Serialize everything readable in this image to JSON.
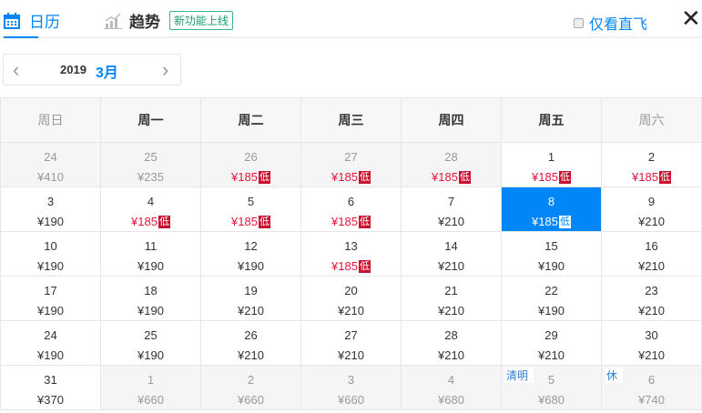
{
  "header": {
    "tab_calendar": "日历",
    "tab_trend": "趋势",
    "new_badge": "新功能上线",
    "direct_only": "仅看直飞",
    "close": "✕"
  },
  "month_selector": {
    "year": "2019",
    "month": "3月",
    "prev": "‹",
    "next": "›"
  },
  "weekdays": [
    "周日",
    "周一",
    "周二",
    "周三",
    "周四",
    "周五",
    "周六"
  ],
  "low_label": "低",
  "colors": {
    "accent": "#0086f6",
    "low_price": "#e2163a",
    "low_badge": "#c8102e"
  },
  "weeks": [
    [
      {
        "day": "24",
        "price": "¥410",
        "other": true
      },
      {
        "day": "25",
        "price": "¥235",
        "other": true
      },
      {
        "day": "26",
        "price": "¥185",
        "other": true,
        "low": true
      },
      {
        "day": "27",
        "price": "¥185",
        "other": true,
        "low": true
      },
      {
        "day": "28",
        "price": "¥185",
        "other": true,
        "low": true
      },
      {
        "day": "1",
        "price": "¥185",
        "low": true
      },
      {
        "day": "2",
        "price": "¥185",
        "low": true
      }
    ],
    [
      {
        "day": "3",
        "price": "¥190"
      },
      {
        "day": "4",
        "price": "¥185",
        "low": true
      },
      {
        "day": "5",
        "price": "¥185",
        "low": true
      },
      {
        "day": "6",
        "price": "¥185",
        "low": true
      },
      {
        "day": "7",
        "price": "¥210"
      },
      {
        "day": "8",
        "price": "¥185",
        "low": true,
        "selected": true
      },
      {
        "day": "9",
        "price": "¥210"
      }
    ],
    [
      {
        "day": "10",
        "price": "¥190"
      },
      {
        "day": "11",
        "price": "¥190"
      },
      {
        "day": "12",
        "price": "¥190"
      },
      {
        "day": "13",
        "price": "¥185",
        "low": true
      },
      {
        "day": "14",
        "price": "¥210"
      },
      {
        "day": "15",
        "price": "¥190"
      },
      {
        "day": "16",
        "price": "¥210"
      }
    ],
    [
      {
        "day": "17",
        "price": "¥190"
      },
      {
        "day": "18",
        "price": "¥190"
      },
      {
        "day": "19",
        "price": "¥210"
      },
      {
        "day": "20",
        "price": "¥210"
      },
      {
        "day": "21",
        "price": "¥210"
      },
      {
        "day": "22",
        "price": "¥190"
      },
      {
        "day": "23",
        "price": "¥210"
      }
    ],
    [
      {
        "day": "24",
        "price": "¥190"
      },
      {
        "day": "25",
        "price": "¥190"
      },
      {
        "day": "26",
        "price": "¥210"
      },
      {
        "day": "27",
        "price": "¥210"
      },
      {
        "day": "28",
        "price": "¥210"
      },
      {
        "day": "29",
        "price": "¥210"
      },
      {
        "day": "30",
        "price": "¥210"
      }
    ],
    [
      {
        "day": "31",
        "price": "¥370"
      },
      {
        "day": "1",
        "price": "¥660",
        "other": true
      },
      {
        "day": "2",
        "price": "¥660",
        "other": true
      },
      {
        "day": "3",
        "price": "¥660",
        "other": true
      },
      {
        "day": "4",
        "price": "¥680",
        "other": true
      },
      {
        "day": "5",
        "price": "¥680",
        "other": true,
        "holiday": "清明"
      },
      {
        "day": "6",
        "price": "¥740",
        "other": true,
        "holiday": "休"
      }
    ]
  ]
}
